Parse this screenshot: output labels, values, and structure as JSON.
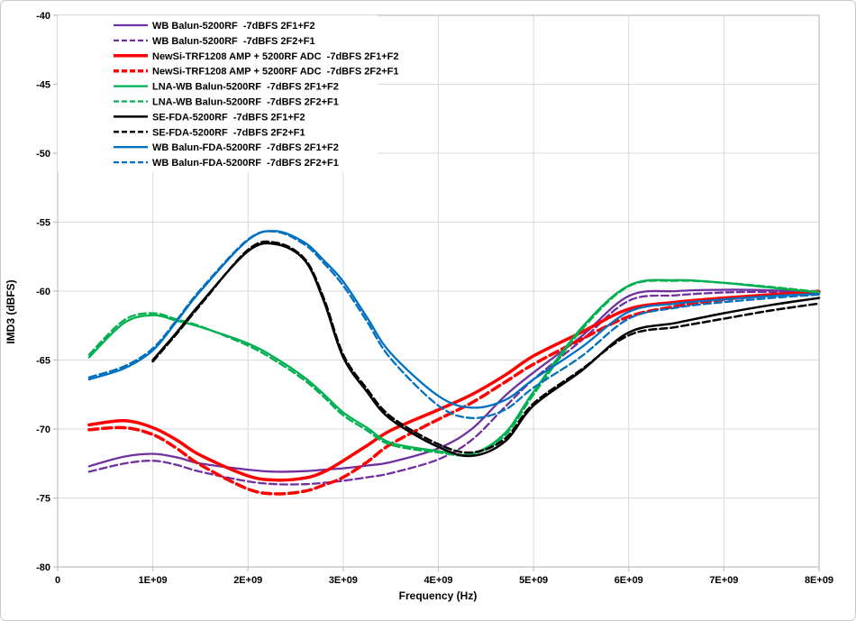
{
  "chart_data": {
    "type": "line",
    "title": "",
    "xlabel": "Frequency (Hz)",
    "ylabel": "IMD3 (dBFS)",
    "xlim": [
      0,
      8000000000.0
    ],
    "ylim": [
      -80,
      -40
    ],
    "grid": true,
    "legend_position": "top-left",
    "x_ticks": [
      {
        "value": 0,
        "label": "0"
      },
      {
        "value": 1000000000.0,
        "label": "1E+09"
      },
      {
        "value": 2000000000.0,
        "label": "2E+09"
      },
      {
        "value": 3000000000.0,
        "label": "3E+09"
      },
      {
        "value": 4000000000.0,
        "label": "4E+09"
      },
      {
        "value": 5000000000.0,
        "label": "5E+09"
      },
      {
        "value": 6000000000.0,
        "label": "6E+09"
      },
      {
        "value": 7000000000.0,
        "label": "7E+09"
      },
      {
        "value": 8000000000.0,
        "label": "8E+09"
      }
    ],
    "y_ticks": [
      {
        "value": -40,
        "label": "-40"
      },
      {
        "value": -45,
        "label": "-45"
      },
      {
        "value": -50,
        "label": "-50"
      },
      {
        "value": -55,
        "label": "-55"
      },
      {
        "value": -60,
        "label": "-60"
      },
      {
        "value": -65,
        "label": "-65"
      },
      {
        "value": -70,
        "label": "-70"
      },
      {
        "value": -75,
        "label": "-75"
      },
      {
        "value": -80,
        "label": "-80"
      }
    ],
    "series": [
      {
        "name": "WB Balun-5200RF  -7dBFS 2F1+F2",
        "color": "#7030A0",
        "dashed": false,
        "width": 2.3,
        "x": [
          330000000.0,
          700000000.0,
          1000000000.0,
          1250000000.0,
          1500000000.0,
          2000000000.0,
          2300000000.0,
          2600000000.0,
          2800000000.0,
          3000000000.0,
          3250000000.0,
          3500000000.0,
          4000000000.0,
          4350000000.0,
          4700000000.0,
          5000000000.0,
          5500000000.0,
          6000000000.0,
          6500000000.0,
          7000000000.0,
          7500000000.0,
          8000000000.0
        ],
        "y": [
          -72.7,
          -72.0,
          -71.8,
          -72.05,
          -72.5,
          -72.95,
          -73.1,
          -73.05,
          -72.95,
          -72.85,
          -72.65,
          -72.4,
          -71.4,
          -70.0,
          -67.6,
          -65.9,
          -63.3,
          -60.35,
          -60.0,
          -59.9,
          -59.95,
          -60.1
        ]
      },
      {
        "name": "WB Balun-5200RF  -7dBFS 2F2+F1",
        "color": "#7030A0",
        "dashed": true,
        "width": 2.3,
        "x": [
          330000000.0,
          700000000.0,
          1000000000.0,
          1250000000.0,
          1500000000.0,
          2000000000.0,
          2300000000.0,
          2600000000.0,
          2800000000.0,
          3000000000.0,
          3250000000.0,
          3500000000.0,
          4000000000.0,
          4350000000.0,
          4700000000.0,
          5000000000.0,
          5500000000.0,
          6000000000.0,
          6500000000.0,
          7000000000.0,
          7500000000.0,
          8000000000.0
        ],
        "y": [
          -73.1,
          -72.5,
          -72.3,
          -72.6,
          -73.1,
          -73.8,
          -74.0,
          -74.0,
          -73.9,
          -73.75,
          -73.5,
          -73.2,
          -72.2,
          -70.8,
          -68.4,
          -66.4,
          -63.6,
          -60.7,
          -60.3,
          -60.1,
          -60.05,
          -60.1
        ]
      },
      {
        "name": "NewSi-TRF1208 AMP + 5200RF ADC  -7dBFS 2F1+F2",
        "color": "#FF0000",
        "dashed": false,
        "width": 3.5,
        "x": [
          330000000.0,
          700000000.0,
          1000000000.0,
          1250000000.0,
          1500000000.0,
          2000000000.0,
          2300000000.0,
          2600000000.0,
          2800000000.0,
          3000000000.0,
          3250000000.0,
          3500000000.0,
          4000000000.0,
          4350000000.0,
          4700000000.0,
          5000000000.0,
          5500000000.0,
          6000000000.0,
          6500000000.0,
          7000000000.0,
          7500000000.0,
          8000000000.0
        ],
        "y": [
          -69.7,
          -69.4,
          -69.9,
          -70.8,
          -71.9,
          -73.4,
          -73.7,
          -73.55,
          -73.1,
          -72.3,
          -71.2,
          -70.1,
          -68.6,
          -67.5,
          -66.1,
          -64.7,
          -63.0,
          -61.3,
          -60.8,
          -60.5,
          -60.25,
          -60.05
        ]
      },
      {
        "name": "NewSi-TRF1208 AMP + 5200RF ADC  -7dBFS 2F2+F1",
        "color": "#FF0000",
        "dashed": true,
        "width": 3.5,
        "x": [
          330000000.0,
          700000000.0,
          1000000000.0,
          1250000000.0,
          1500000000.0,
          2000000000.0,
          2300000000.0,
          2600000000.0,
          2800000000.0,
          3000000000.0,
          3250000000.0,
          3500000000.0,
          4000000000.0,
          4350000000.0,
          4700000000.0,
          5000000000.0,
          5500000000.0,
          6000000000.0,
          6500000000.0,
          7000000000.0,
          7500000000.0,
          8000000000.0
        ],
        "y": [
          -70.05,
          -69.9,
          -70.4,
          -71.4,
          -72.6,
          -74.35,
          -74.7,
          -74.5,
          -74.05,
          -73.5,
          -72.4,
          -71.1,
          -69.3,
          -68.1,
          -66.6,
          -65.3,
          -63.5,
          -61.85,
          -61.1,
          -60.6,
          -60.3,
          -60.0
        ]
      },
      {
        "name": "LNA-WB Balun-5200RF  -7dBFS 2F1+F2",
        "color": "#00B050",
        "dashed": false,
        "width": 2.3,
        "x": [
          330000000.0,
          700000000.0,
          1000000000.0,
          1250000000.0,
          1500000000.0,
          2000000000.0,
          2300000000.0,
          2600000000.0,
          2800000000.0,
          3000000000.0,
          3250000000.0,
          3500000000.0,
          4000000000.0,
          4350000000.0,
          4700000000.0,
          5000000000.0,
          5500000000.0,
          6000000000.0,
          6500000000.0,
          7000000000.0,
          7500000000.0,
          8000000000.0
        ],
        "y": [
          -64.8,
          -62.3,
          -61.75,
          -62.15,
          -62.6,
          -63.8,
          -64.9,
          -66.3,
          -67.5,
          -68.8,
          -69.9,
          -71.0,
          -71.6,
          -71.8,
          -70.3,
          -67.3,
          -62.7,
          -59.6,
          -59.2,
          -59.4,
          -59.75,
          -60.1
        ]
      },
      {
        "name": "LNA-WB Balun-5200RF  -7dBFS 2F2+F1",
        "color": "#00B050",
        "dashed": true,
        "width": 2.3,
        "x": [
          330000000.0,
          700000000.0,
          1000000000.0,
          1250000000.0,
          1500000000.0,
          2000000000.0,
          2300000000.0,
          2600000000.0,
          2800000000.0,
          3000000000.0,
          3250000000.0,
          3500000000.0,
          4000000000.0,
          4350000000.0,
          4700000000.0,
          5000000000.0,
          5500000000.0,
          6000000000.0,
          6500000000.0,
          7000000000.0,
          7500000000.0,
          8000000000.0
        ],
        "y": [
          -64.6,
          -62.1,
          -61.6,
          -62.05,
          -62.55,
          -63.95,
          -65.1,
          -66.5,
          -67.7,
          -69.0,
          -70.1,
          -71.15,
          -71.7,
          -71.85,
          -70.45,
          -67.5,
          -62.85,
          -59.65,
          -59.25,
          -59.4,
          -59.7,
          -60.05
        ]
      },
      {
        "name": "SE-FDA-5200RF  -7dBFS 2F1+F2",
        "color": "#000000",
        "dashed": false,
        "width": 2.5,
        "x": [
          1000000000.0,
          1250000000.0,
          1500000000.0,
          2000000000.0,
          2300000000.0,
          2600000000.0,
          2800000000.0,
          3000000000.0,
          3250000000.0,
          3500000000.0,
          4000000000.0,
          4350000000.0,
          4700000000.0,
          5000000000.0,
          5500000000.0,
          6000000000.0,
          6500000000.0,
          7000000000.0,
          7500000000.0,
          8000000000.0
        ],
        "y": [
          -65.0,
          -63.0,
          -60.9,
          -57.1,
          -56.6,
          -57.8,
          -60.8,
          -64.8,
          -67.3,
          -69.3,
          -71.3,
          -71.95,
          -70.9,
          -68.3,
          -65.8,
          -63.0,
          -62.3,
          -61.6,
          -61.0,
          -60.5
        ]
      },
      {
        "name": "SE-FDA-5200RF  -7dBFS 2F2+F1",
        "color": "#000000",
        "dashed": true,
        "width": 2.5,
        "x": [
          1000000000.0,
          1250000000.0,
          1500000000.0,
          2000000000.0,
          2300000000.0,
          2600000000.0,
          2800000000.0,
          3000000000.0,
          3250000000.0,
          3500000000.0,
          4000000000.0,
          4350000000.0,
          4700000000.0,
          5000000000.0,
          5500000000.0,
          6000000000.0,
          6500000000.0,
          7000000000.0,
          7500000000.0,
          8000000000.0
        ],
        "y": [
          -65.1,
          -63.1,
          -61.0,
          -57.0,
          -56.5,
          -57.7,
          -60.6,
          -64.6,
          -67.1,
          -69.1,
          -71.1,
          -71.7,
          -70.7,
          -68.15,
          -65.7,
          -63.2,
          -62.6,
          -62.0,
          -61.4,
          -60.9
        ]
      },
      {
        "name": "WB Balun-FDA-5200RF  -7dBFS 2F1+F2",
        "color": "#0070C0",
        "dashed": false,
        "width": 2.3,
        "x": [
          330000000.0,
          700000000.0,
          1000000000.0,
          1250000000.0,
          1500000000.0,
          2000000000.0,
          2300000000.0,
          2600000000.0,
          2800000000.0,
          3000000000.0,
          3250000000.0,
          3500000000.0,
          4000000000.0,
          4350000000.0,
          4700000000.0,
          5000000000.0,
          5500000000.0,
          6000000000.0,
          6500000000.0,
          7000000000.0,
          7500000000.0,
          8000000000.0
        ],
        "y": [
          -66.4,
          -65.6,
          -64.3,
          -62.2,
          -60.0,
          -56.3,
          -55.65,
          -56.5,
          -57.8,
          -59.3,
          -61.9,
          -64.5,
          -67.6,
          -68.45,
          -67.9,
          -66.4,
          -64.1,
          -61.5,
          -60.9,
          -60.6,
          -60.35,
          -60.2
        ]
      },
      {
        "name": "WB Balun-FDA-5200RF  -7dBFS 2F2+F1",
        "color": "#0070C0",
        "dashed": true,
        "width": 2.3,
        "x": [
          330000000.0,
          700000000.0,
          1000000000.0,
          1250000000.0,
          1500000000.0,
          2000000000.0,
          2300000000.0,
          2600000000.0,
          2800000000.0,
          3000000000.0,
          3250000000.0,
          3500000000.0,
          4000000000.0,
          4350000000.0,
          4700000000.0,
          5000000000.0,
          5500000000.0,
          6000000000.0,
          6500000000.0,
          7000000000.0,
          7500000000.0,
          8000000000.0
        ],
        "y": [
          -66.25,
          -65.45,
          -64.15,
          -62.1,
          -59.9,
          -56.25,
          -55.7,
          -56.65,
          -58.0,
          -59.6,
          -62.2,
          -64.9,
          -68.3,
          -69.2,
          -68.6,
          -67.0,
          -64.75,
          -62.0,
          -61.2,
          -60.8,
          -60.5,
          -60.25
        ]
      }
    ]
  },
  "style": {
    "grid_color": "#D9D9D9",
    "axis_color": "#BFBFBF",
    "text_color": "#000000",
    "plot_bg": "#FFFFFF"
  }
}
